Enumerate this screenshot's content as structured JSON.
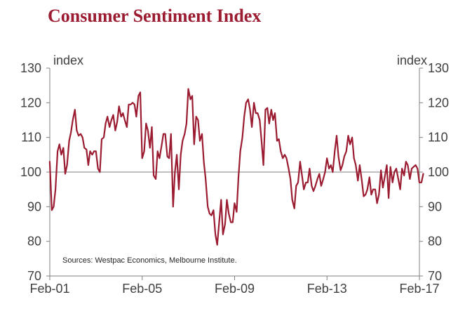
{
  "colors": {
    "title": "#9b1c31",
    "series": "#9b1c31",
    "axis": "#808080",
    "reference": "#808080"
  },
  "chart_data": {
    "type": "line",
    "title": "Consumer Sentiment Index",
    "ylabel_left": "index",
    "ylabel_right": "index",
    "ylim": [
      70,
      130
    ],
    "yticks": [
      70,
      80,
      90,
      100,
      110,
      120,
      130
    ],
    "xlim": [
      2001.083,
      2017.083
    ],
    "xticks": [
      {
        "label": "Feb-01",
        "value": 2001.083
      },
      {
        "label": "Feb-05",
        "value": 2005.083
      },
      {
        "label": "Feb-09",
        "value": 2009.083
      },
      {
        "label": "Feb-13",
        "value": 2013.083
      },
      {
        "label": "Feb-17",
        "value": 2017.083
      }
    ],
    "reference_line": 100,
    "source": "Sources: Westpac Economics, Melbourne Institute.",
    "series": [
      {
        "name": "Consumer Sentiment Index",
        "points": [
          [
            2001.08,
            103.0
          ],
          [
            2001.17,
            89.0
          ],
          [
            2001.25,
            90.0
          ],
          [
            2001.33,
            95.0
          ],
          [
            2001.42,
            106.0
          ],
          [
            2001.5,
            108.0
          ],
          [
            2001.58,
            105.0
          ],
          [
            2001.67,
            107.0
          ],
          [
            2001.75,
            99.5
          ],
          [
            2001.83,
            102.0
          ],
          [
            2001.92,
            109.0
          ],
          [
            2002.0,
            111.5
          ],
          [
            2002.08,
            115.0
          ],
          [
            2002.17,
            118.0
          ],
          [
            2002.25,
            112.0
          ],
          [
            2002.33,
            110.5
          ],
          [
            2002.42,
            111.0
          ],
          [
            2002.5,
            110.0
          ],
          [
            2002.58,
            107.0
          ],
          [
            2002.67,
            106.5
          ],
          [
            2002.75,
            102.0
          ],
          [
            2002.83,
            106.0
          ],
          [
            2002.92,
            105.0
          ],
          [
            2003.0,
            106.0
          ],
          [
            2003.08,
            106.0
          ],
          [
            2003.17,
            101.0
          ],
          [
            2003.25,
            100.0
          ],
          [
            2003.33,
            109.5
          ],
          [
            2003.42,
            110.0
          ],
          [
            2003.5,
            114.0
          ],
          [
            2003.58,
            116.0
          ],
          [
            2003.67,
            113.0
          ],
          [
            2003.75,
            115.0
          ],
          [
            2003.83,
            116.5
          ],
          [
            2003.92,
            112.0
          ],
          [
            2004.0,
            114.5
          ],
          [
            2004.08,
            119.0
          ],
          [
            2004.17,
            116.0
          ],
          [
            2004.25,
            117.0
          ],
          [
            2004.33,
            115.0
          ],
          [
            2004.42,
            113.0
          ],
          [
            2004.5,
            119.5
          ],
          [
            2004.58,
            119.5
          ],
          [
            2004.67,
            120.0
          ],
          [
            2004.75,
            119.5
          ],
          [
            2004.83,
            116.0
          ],
          [
            2004.92,
            122.0
          ],
          [
            2005.0,
            123.0
          ],
          [
            2005.08,
            104.0
          ],
          [
            2005.17,
            106.0
          ],
          [
            2005.25,
            114.0
          ],
          [
            2005.33,
            112.0
          ],
          [
            2005.42,
            107.0
          ],
          [
            2005.5,
            113.0
          ],
          [
            2005.58,
            99.0
          ],
          [
            2005.67,
            98.0
          ],
          [
            2005.75,
            106.0
          ],
          [
            2005.83,
            104.0
          ],
          [
            2005.92,
            107.5
          ],
          [
            2006.0,
            111.0
          ],
          [
            2006.08,
            111.0
          ],
          [
            2006.17,
            104.5
          ],
          [
            2006.25,
            104.0
          ],
          [
            2006.33,
            111.0
          ],
          [
            2006.42,
            90.0
          ],
          [
            2006.5,
            100.0
          ],
          [
            2006.58,
            105.0
          ],
          [
            2006.67,
            95.0
          ],
          [
            2006.75,
            105.0
          ],
          [
            2006.83,
            109.0
          ],
          [
            2006.92,
            111.0
          ],
          [
            2007.0,
            114.0
          ],
          [
            2007.08,
            124.0
          ],
          [
            2007.17,
            121.0
          ],
          [
            2007.25,
            122.0
          ],
          [
            2007.33,
            108.0
          ],
          [
            2007.42,
            116.0
          ],
          [
            2007.5,
            115.0
          ],
          [
            2007.58,
            109.0
          ],
          [
            2007.67,
            111.0
          ],
          [
            2007.75,
            103.0
          ],
          [
            2007.83,
            98.0
          ],
          [
            2007.92,
            90.0
          ],
          [
            2008.0,
            88.0
          ],
          [
            2008.08,
            87.5
          ],
          [
            2008.17,
            89.0
          ],
          [
            2008.25,
            82.0
          ],
          [
            2008.33,
            79.0
          ],
          [
            2008.42,
            86.0
          ],
          [
            2008.5,
            92.0
          ],
          [
            2008.58,
            82.0
          ],
          [
            2008.67,
            85.0
          ],
          [
            2008.75,
            92.0
          ],
          [
            2008.83,
            88.0
          ],
          [
            2008.92,
            85.5
          ],
          [
            2009.0,
            85.5
          ],
          [
            2009.08,
            91.0
          ],
          [
            2009.17,
            88.5
          ],
          [
            2009.25,
            98.5
          ],
          [
            2009.33,
            106.0
          ],
          [
            2009.42,
            110.0
          ],
          [
            2009.5,
            116.0
          ],
          [
            2009.58,
            120.0
          ],
          [
            2009.67,
            121.0
          ],
          [
            2009.75,
            118.0
          ],
          [
            2009.83,
            113.0
          ],
          [
            2009.92,
            120.0
          ],
          [
            2010.0,
            117.0
          ],
          [
            2010.08,
            117.0
          ],
          [
            2010.17,
            115.0
          ],
          [
            2010.25,
            109.0
          ],
          [
            2010.33,
            102.0
          ],
          [
            2010.42,
            118.0
          ],
          [
            2010.5,
            118.5
          ],
          [
            2010.58,
            114.0
          ],
          [
            2010.67,
            118.0
          ],
          [
            2010.75,
            115.0
          ],
          [
            2010.83,
            117.0
          ],
          [
            2010.92,
            109.0
          ],
          [
            2011.0,
            109.5
          ],
          [
            2011.08,
            106.0
          ],
          [
            2011.17,
            104.0
          ],
          [
            2011.25,
            105.0
          ],
          [
            2011.33,
            104.0
          ],
          [
            2011.42,
            101.0
          ],
          [
            2011.5,
            98.0
          ],
          [
            2011.58,
            92.0
          ],
          [
            2011.67,
            89.5
          ],
          [
            2011.75,
            96.0
          ],
          [
            2011.83,
            97.0
          ],
          [
            2011.92,
            103.0
          ],
          [
            2012.0,
            99.0
          ],
          [
            2012.08,
            95.0
          ],
          [
            2012.17,
            97.0
          ],
          [
            2012.25,
            97.0
          ],
          [
            2012.33,
            101.0
          ],
          [
            2012.42,
            96.0
          ],
          [
            2012.5,
            94.5
          ],
          [
            2012.58,
            96.0
          ],
          [
            2012.67,
            98.0
          ],
          [
            2012.75,
            99.5
          ],
          [
            2012.83,
            96.0
          ],
          [
            2012.92,
            98.0
          ],
          [
            2013.0,
            100.0
          ],
          [
            2013.08,
            104.0
          ],
          [
            2013.17,
            101.0
          ],
          [
            2013.25,
            102.0
          ],
          [
            2013.33,
            100.0
          ],
          [
            2013.42,
            106.0
          ],
          [
            2013.5,
            110.5
          ],
          [
            2013.58,
            104.5
          ],
          [
            2013.67,
            100.5
          ],
          [
            2013.75,
            102.0
          ],
          [
            2013.83,
            104.5
          ],
          [
            2013.92,
            106.0
          ],
          [
            2014.0,
            110.5
          ],
          [
            2014.08,
            108.0
          ],
          [
            2014.17,
            110.0
          ],
          [
            2014.25,
            104.0
          ],
          [
            2014.33,
            102.0
          ],
          [
            2014.42,
            97.5
          ],
          [
            2014.5,
            102.0
          ],
          [
            2014.58,
            98.0
          ],
          [
            2014.67,
            93.0
          ],
          [
            2014.75,
            93.5
          ],
          [
            2014.83,
            95.0
          ],
          [
            2014.92,
            98.5
          ],
          [
            2015.0,
            93.5
          ],
          [
            2015.08,
            95.0
          ],
          [
            2015.17,
            95.0
          ],
          [
            2015.25,
            91.0
          ],
          [
            2015.33,
            93.5
          ],
          [
            2015.42,
            100.5
          ],
          [
            2015.5,
            95.5
          ],
          [
            2015.58,
            98.5
          ],
          [
            2015.67,
            102.0
          ],
          [
            2015.75,
            92.5
          ],
          [
            2015.83,
            101.5
          ],
          [
            2015.92,
            97.0
          ],
          [
            2016.0,
            100.0
          ],
          [
            2016.08,
            101.0
          ],
          [
            2016.17,
            98.0
          ],
          [
            2016.25,
            95.0
          ],
          [
            2016.33,
            101.0
          ],
          [
            2016.42,
            99.0
          ],
          [
            2016.5,
            103.0
          ],
          [
            2016.58,
            102.0
          ],
          [
            2016.67,
            98.0
          ],
          [
            2016.75,
            101.0
          ],
          [
            2016.83,
            101.5
          ],
          [
            2016.92,
            102.0
          ],
          [
            2017.0,
            101.0
          ],
          [
            2017.08,
            97.0
          ],
          [
            2017.17,
            97.0
          ],
          [
            2017.25,
            99.5
          ]
        ]
      }
    ]
  }
}
